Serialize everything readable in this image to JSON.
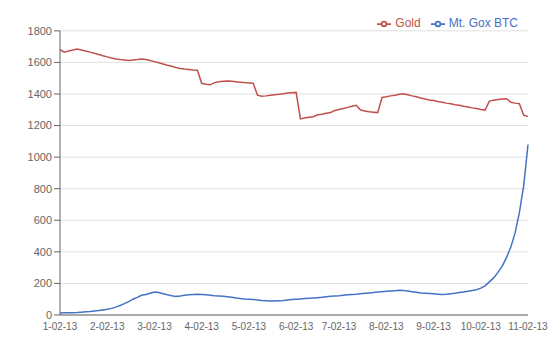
{
  "chart_data": {
    "type": "line",
    "title": "",
    "categories": [
      "1-02-13",
      null,
      null,
      null,
      null,
      null,
      null,
      null,
      null,
      null,
      null,
      "2-02-13",
      null,
      null,
      null,
      null,
      null,
      null,
      null,
      null,
      null,
      null,
      "3-02-13",
      null,
      null,
      null,
      null,
      null,
      null,
      null,
      null,
      null,
      null,
      "4-02-13",
      null,
      null,
      null,
      null,
      null,
      null,
      null,
      null,
      null,
      null,
      "5-02-13",
      null,
      null,
      null,
      null,
      null,
      null,
      null,
      null,
      null,
      null,
      "6-02-13",
      null,
      null,
      null,
      null,
      null,
      null,
      null,
      null,
      null,
      "7-02-13",
      null,
      null,
      null,
      null,
      null,
      null,
      null,
      null,
      null,
      null,
      "8-02-13",
      null,
      null,
      null,
      null,
      null,
      null,
      null,
      null,
      null,
      null,
      "9-02-13",
      null,
      null,
      null,
      null,
      null,
      null,
      null,
      null,
      null,
      null,
      "10-02-13",
      null,
      null,
      null,
      null,
      null,
      null,
      null,
      null,
      null,
      null,
      "11-02-13"
    ],
    "series": [
      {
        "name": "Mt. Gox BTC",
        "color": "#4472C4",
        "values": [
          13,
          14,
          14,
          15,
          16,
          18,
          20,
          22,
          25,
          28,
          32,
          36,
          42,
          50,
          60,
          72,
          85,
          100,
          112,
          125,
          130,
          138,
          145,
          142,
          135,
          128,
          122,
          118,
          120,
          125,
          128,
          130,
          132,
          130,
          128,
          125,
          122,
          120,
          118,
          115,
          112,
          108,
          105,
          102,
          100,
          98,
          95,
          92,
          90,
          88,
          88,
          90,
          92,
          95,
          98,
          100,
          102,
          104,
          106,
          108,
          110,
          112,
          115,
          118,
          120,
          122,
          125,
          128,
          130,
          132,
          135,
          138,
          140,
          142,
          145,
          148,
          150,
          152,
          154,
          156,
          155,
          152,
          148,
          144,
          140,
          138,
          136,
          134,
          132,
          130,
          132,
          135,
          138,
          142,
          146,
          150,
          155,
          160,
          170,
          185,
          210,
          235,
          270,
          310,
          365,
          430,
          520,
          650,
          820,
          1080
        ]
      },
      {
        "name": "Gold",
        "color": "#C0504D",
        "values": [
          1680,
          1665,
          1672,
          1678,
          1685,
          1678,
          1672,
          1665,
          1658,
          1650,
          1642,
          1635,
          1628,
          1622,
          1618,
          1615,
          1612,
          1615,
          1618,
          1622,
          1618,
          1612,
          1605,
          1598,
          1590,
          1582,
          1575,
          1568,
          1562,
          1558,
          1555,
          1552,
          1550,
          1468,
          1462,
          1458,
          1472,
          1478,
          1480,
          1482,
          1480,
          1478,
          1475,
          1472,
          1470,
          1468,
          1392,
          1385,
          1388,
          1392,
          1395,
          1398,
          1402,
          1406,
          1408,
          1410,
          1242,
          1248,
          1252,
          1256,
          1268,
          1272,
          1278,
          1282,
          1295,
          1302,
          1308,
          1315,
          1322,
          1328,
          1298,
          1292,
          1288,
          1285,
          1282,
          1378,
          1382,
          1388,
          1392,
          1398,
          1402,
          1395,
          1388,
          1382,
          1375,
          1368,
          1362,
          1358,
          1352,
          1348,
          1342,
          1338,
          1332,
          1328,
          1322,
          1318,
          1312,
          1308,
          1302,
          1298,
          1355,
          1360,
          1365,
          1368,
          1370,
          1348,
          1342,
          1338,
          1265,
          1258
        ]
      }
    ],
    "ylim": [
      0,
      1800
    ],
    "yticks": [
      0,
      200,
      400,
      600,
      800,
      1000,
      1200,
      1400,
      1600,
      1800
    ],
    "grid": true,
    "legend": "upper right"
  }
}
